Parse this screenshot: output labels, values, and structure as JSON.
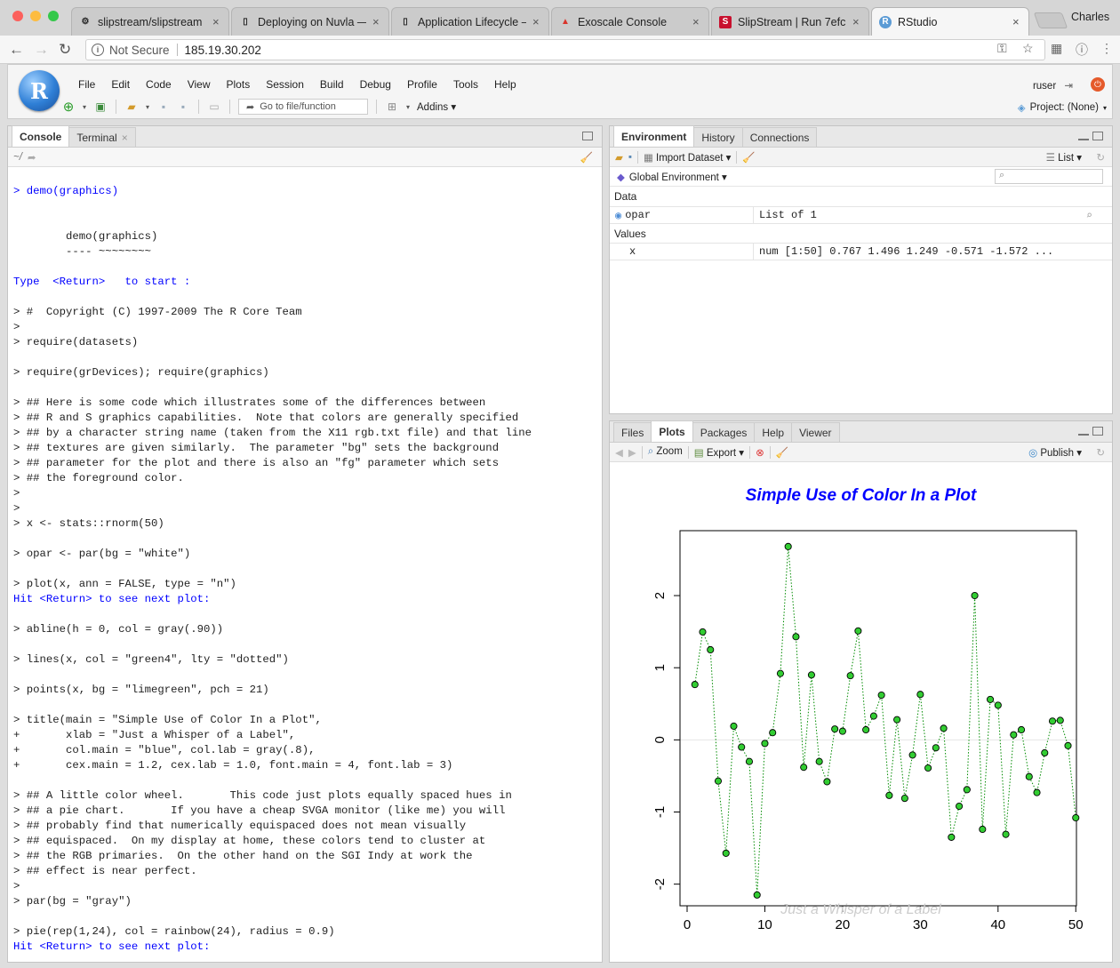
{
  "browser": {
    "tabs": [
      {
        "label": "slipstream/slipstream",
        "icon": "github-icon",
        "close": "×"
      },
      {
        "label": "Deploying on Nuvla —",
        "icon": "doc-icon",
        "close": "×"
      },
      {
        "label": "Application Lifecycle –",
        "icon": "doc-icon",
        "close": "×"
      },
      {
        "label": "Exoscale Console",
        "icon": "exoscale-icon",
        "close": "×"
      },
      {
        "label": "SlipStream | Run 7efc",
        "icon": "slipstream-icon",
        "close": "×"
      },
      {
        "label": "RStudio",
        "icon": "rstudio-icon",
        "close": "×"
      }
    ],
    "profile": "Charles",
    "security": "Not Secure",
    "url": "185.19.30.202"
  },
  "rstudio": {
    "menu": [
      "File",
      "Edit",
      "Code",
      "View",
      "Plots",
      "Session",
      "Build",
      "Debug",
      "Profile",
      "Tools",
      "Help"
    ],
    "goto_placeholder": "Go to file/function",
    "addins": "Addins",
    "user": "ruser",
    "project": "Project: (None)"
  },
  "console": {
    "tabs": [
      "Console",
      "Terminal"
    ],
    "path": "~/",
    "lines": [
      {
        "t": "> demo(graphics)",
        "c": "blue",
        "y": 214
      },
      {
        "t": "        demo(graphics)",
        "c": "",
        "y": 265
      },
      {
        "t": "        ---- ~~~~~~~~",
        "c": "",
        "y": 282
      },
      {
        "t": "Type  <Return>   to start :",
        "c": "blue",
        "y": 316
      },
      {
        "t": "> #  Copyright (C) 1997-2009 The R Core Team",
        "c": "",
        "y": 350
      },
      {
        "t": ">",
        "c": "",
        "y": 367
      },
      {
        "t": "> require(datasets)",
        "c": "",
        "y": 384
      },
      {
        "t": "> require(grDevices); require(graphics)",
        "c": "",
        "y": 418
      },
      {
        "t": "> ## Here is some code which illustrates some of the differences between",
        "c": "",
        "y": 452
      },
      {
        "t": "> ## R and S graphics capabilities.  Note that colors are generally specified",
        "c": "",
        "y": 469
      },
      {
        "t": "> ## by a character string name (taken from the X11 rgb.txt file) and that line",
        "c": "",
        "y": 486
      },
      {
        "t": "> ## textures are given similarly.  The parameter \"bg\" sets the background",
        "c": "",
        "y": 503
      },
      {
        "t": "> ## parameter for the plot and there is also an \"fg\" parameter which sets",
        "c": "",
        "y": 520
      },
      {
        "t": "> ## the foreground color.",
        "c": "",
        "y": 537
      },
      {
        "t": ">",
        "c": "",
        "y": 554
      },
      {
        "t": ">",
        "c": "",
        "y": 571
      },
      {
        "t": "> x <- stats::rnorm(50)",
        "c": "",
        "y": 588
      },
      {
        "t": "> opar <- par(bg = \"white\")",
        "c": "",
        "y": 622
      },
      {
        "t": "> plot(x, ann = FALSE, type = \"n\")",
        "c": "",
        "y": 656
      },
      {
        "t": "Hit <Return> to see next plot:",
        "c": "blue",
        "y": 673
      },
      {
        "t": "> abline(h = 0, col = gray(.90))",
        "c": "",
        "y": 707
      },
      {
        "t": "> lines(x, col = \"green4\", lty = \"dotted\")",
        "c": "",
        "y": 741
      },
      {
        "t": "> points(x, bg = \"limegreen\", pch = 21)",
        "c": "",
        "y": 775
      },
      {
        "t": "> title(main = \"Simple Use of Color In a Plot\",",
        "c": "",
        "y": 809
      },
      {
        "t": "+       xlab = \"Just a Whisper of a Label\",",
        "c": "",
        "y": 826
      },
      {
        "t": "+       col.main = \"blue\", col.lab = gray(.8),",
        "c": "",
        "y": 843
      },
      {
        "t": "+       cex.main = 1.2, cex.lab = 1.0, font.main = 4, font.lab = 3)",
        "c": "",
        "y": 860
      },
      {
        "t": "> ## A little color wheel.       This code just plots equally spaced hues in",
        "c": "",
        "y": 894
      },
      {
        "t": "> ## a pie chart.       If you have a cheap SVGA monitor (like me) you will",
        "c": "",
        "y": 911
      },
      {
        "t": "> ## probably find that numerically equispaced does not mean visually",
        "c": "",
        "y": 928
      },
      {
        "t": "> ## equispaced.  On my display at home, these colors tend to cluster at",
        "c": "",
        "y": 945
      },
      {
        "t": "> ## the RGB primaries.  On the other hand on the SGI Indy at work the",
        "c": "",
        "y": 962
      },
      {
        "t": "> ## effect is near perfect.",
        "c": "",
        "y": 979
      },
      {
        "t": ">",
        "c": "",
        "y": 996
      },
      {
        "t": "> par(bg = \"gray\")",
        "c": "",
        "y": 1013
      },
      {
        "t": "> pie(rep(1,24), col = rainbow(24), radius = 0.9)",
        "c": "",
        "y": 1047
      },
      {
        "t": "Hit <Return> to see next plot:",
        "c": "blue",
        "y": 1064
      }
    ]
  },
  "environment": {
    "tabs": [
      "Environment",
      "History",
      "Connections"
    ],
    "import": "Import Dataset",
    "list": "List",
    "scope": "Global Environment",
    "data_header": "Data",
    "data": [
      {
        "name": "opar",
        "value": "List of 1"
      }
    ],
    "values_header": "Values",
    "values": [
      {
        "name": "x",
        "value": "num [1:50] 0.767 1.496 1.249 -0.571 -1.572 ..."
      }
    ]
  },
  "files": {
    "tabs": [
      "Files",
      "Plots",
      "Packages",
      "Help",
      "Viewer"
    ],
    "zoom": "Zoom",
    "export": "Export",
    "publish": "Publish"
  },
  "chart_data": {
    "type": "scatter",
    "title": "Simple Use of Color In a Plot",
    "xlabel": "Just a Whisper of a Label",
    "ylabel": "",
    "xlim": [
      0,
      51
    ],
    "ylim": [
      -2.3,
      2.9
    ],
    "xticks": [
      0,
      10,
      20,
      30,
      40,
      50
    ],
    "yticks": [
      -2,
      -1,
      0,
      1,
      2
    ],
    "hline": 0,
    "title_color": "#0000ff",
    "label_color": "#cccccc",
    "line_color": "#008b00",
    "point_fill": "#32cd32",
    "x": [
      1,
      2,
      3,
      4,
      5,
      6,
      7,
      8,
      9,
      10,
      11,
      12,
      13,
      14,
      15,
      16,
      17,
      18,
      19,
      20,
      21,
      22,
      23,
      24,
      25,
      26,
      27,
      28,
      29,
      30,
      31,
      32,
      33,
      34,
      35,
      36,
      37,
      38,
      39,
      40,
      41,
      42,
      43,
      44,
      45,
      46,
      47,
      48,
      49,
      50
    ],
    "y": [
      0.767,
      1.496,
      1.249,
      -0.571,
      -1.572,
      0.19,
      -0.1,
      -0.3,
      -2.15,
      -0.05,
      0.1,
      0.92,
      2.68,
      1.43,
      -0.38,
      0.9,
      -0.3,
      -0.58,
      0.15,
      0.12,
      0.89,
      1.51,
      0.14,
      0.33,
      0.62,
      -0.77,
      0.28,
      -0.81,
      -0.21,
      0.63,
      -0.39,
      -0.11,
      0.16,
      -1.35,
      -0.92,
      -0.69,
      2.0,
      -1.24,
      0.56,
      0.48,
      -1.31,
      0.07,
      0.14,
      -0.51,
      -0.73,
      -0.18,
      0.26,
      0.27,
      -0.08,
      -1.08
    ]
  }
}
